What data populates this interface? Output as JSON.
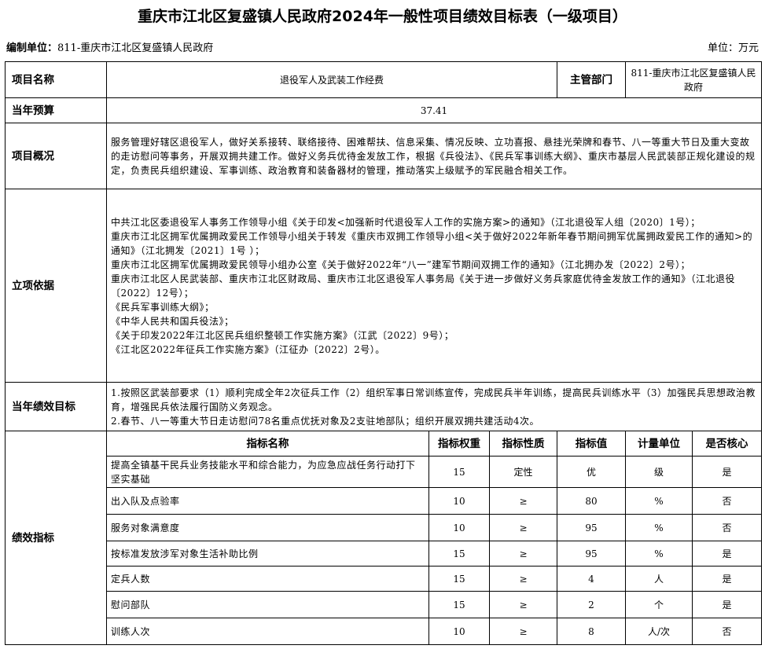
{
  "title": "重庆市江北区复盛镇人民政府2024年一般性项目绩效目标表（一级项目）",
  "unit_label": "编制单位：",
  "unit_value": "811-重庆市江北区复盛镇人民政府",
  "currency": "单位：万元",
  "rows": {
    "project_name_label": "项目名称",
    "project_name": "退役军人及武装工作经费",
    "dept_label": "主管部门",
    "dept": "811-重庆市江北区复盛镇人民政府",
    "budget_label": "当年预算",
    "budget": "37.41",
    "overview_label": "项目概况",
    "overview": "服务管理好辖区退役军人，做好关系接转、联络接待、困难帮扶、信息采集、情况反映、立功喜报、悬挂光荣牌和春节、八一等重大节日及重大变故的走访慰问等事务，开展双拥共建工作。做好义务兵优待金发放工作，根据《兵役法》、《民兵军事训练大纲》、重庆市基层人民武装部正规化建设的规定，负责民兵组织建设、军事训练、政治教育和装备器材的管理，推动落实上级赋予的军民融合相关工作。",
    "basis_label": "立项依据",
    "basis": [
      "中共江北区委退役军人事务工作领导小组《关于印发<加强新时代退役军人工作的实施方案>的通知》（江北退役军人组〔2020〕1号）；",
      "重庆市江北区拥军优属拥政爱民工作领导小组关于转发《重庆市双拥工作领导小组<关于做好2022年新年春节期间拥军优属拥政爱民工作的通知>的通知》（江北拥发〔2021〕1号 ）；",
      "重庆市江北区拥军优属拥政爱民领导小组办公室《关于做好2022年“八一”建军节期间双拥工作的通知》（江北拥办发〔2022〕2号）；",
      "重庆市江北区人民武装部、重庆市江北区财政局、重庆市江北区退役军人事务局《关于进一步做好义务兵家庭优待金发放工作的通知》（江北退役〔2022〕12号）；",
      "《民兵军事训练大纲》；",
      "《中华人民共和国兵役法》；",
      "《关于印发2022年江北区民兵组织整顿工作实施方案》（江武〔2022〕9号）；",
      "《江北区2022年征兵工作实施方案》（江征办〔2022〕2号）。"
    ],
    "goal_label": "当年绩效目标",
    "goals": [
      "1.按照区武装部要求（1）顺利完成全年2次征兵工作（2）组织军事日常训练宣传，完成民兵半年训练，提高民兵训练水平（3）加强民兵思想政治教育，增强民兵依法履行国防义务观念。",
      "2.春节、八一等重大节日走访慰问78名重点优抚对象及2支驻地部队；组织开展双拥共建活动4次。"
    ],
    "metrics_label": "绩效指标"
  },
  "metrics": {
    "headers": [
      "指标名称",
      "指标权重",
      "指标性质",
      "指标值",
      "计量单位",
      "是否核心"
    ],
    "rows": [
      [
        "提高全镇基干民兵业务技能水平和综合能力，为应急应战任务行动打下坚实基础",
        "15",
        "定性",
        "优",
        "级",
        "是"
      ],
      [
        "出入队及点验率",
        "10",
        "≥",
        "80",
        "%",
        "否"
      ],
      [
        "服务对象满意度",
        "10",
        "≥",
        "95",
        "%",
        "否"
      ],
      [
        "按标准发放涉军对象生活补助比例",
        "15",
        "≥",
        "95",
        "%",
        "是"
      ],
      [
        "定兵人数",
        "15",
        "≥",
        "4",
        "人",
        "是"
      ],
      [
        "慰问部队",
        "15",
        "≥",
        "2",
        "个",
        "是"
      ],
      [
        "训练人次",
        "10",
        "≥",
        "8",
        "人/次",
        "否"
      ]
    ]
  }
}
